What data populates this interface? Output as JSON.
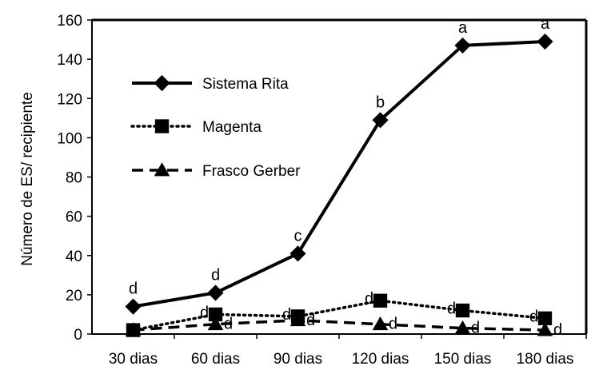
{
  "chart_data": {
    "type": "line",
    "categories": [
      "30 dias",
      "60 dias",
      "90 dias",
      "120 dias",
      "150 dias",
      "180 dias"
    ],
    "ylabel": "Número de ES/ recipiente",
    "xlabel": "",
    "ylim": [
      0,
      160
    ],
    "yticks": [
      0,
      20,
      40,
      60,
      80,
      100,
      120,
      140,
      160
    ],
    "grid": false,
    "legend_position": "top-left",
    "series": [
      {
        "name": "Sistema Rita",
        "marker": "diamond",
        "line": "solid",
        "color": "#000000",
        "values": [
          14,
          21,
          41,
          109,
          147,
          149
        ],
        "labels": [
          "d",
          "d",
          "c",
          "b",
          "a",
          "a"
        ]
      },
      {
        "name": "Magenta",
        "marker": "square",
        "line": "dotted",
        "color": "#000000",
        "values": [
          2,
          10,
          9,
          17,
          12,
          8
        ],
        "labels": [
          "",
          "d",
          "d",
          "d",
          "d",
          "d"
        ]
      },
      {
        "name": "Frasco Gerber",
        "marker": "triangle",
        "line": "dashed",
        "color": "#000000",
        "values": [
          2,
          5,
          7,
          5,
          3,
          2
        ],
        "labels": [
          "",
          "d",
          "d",
          "d",
          "d",
          "d"
        ]
      }
    ]
  }
}
